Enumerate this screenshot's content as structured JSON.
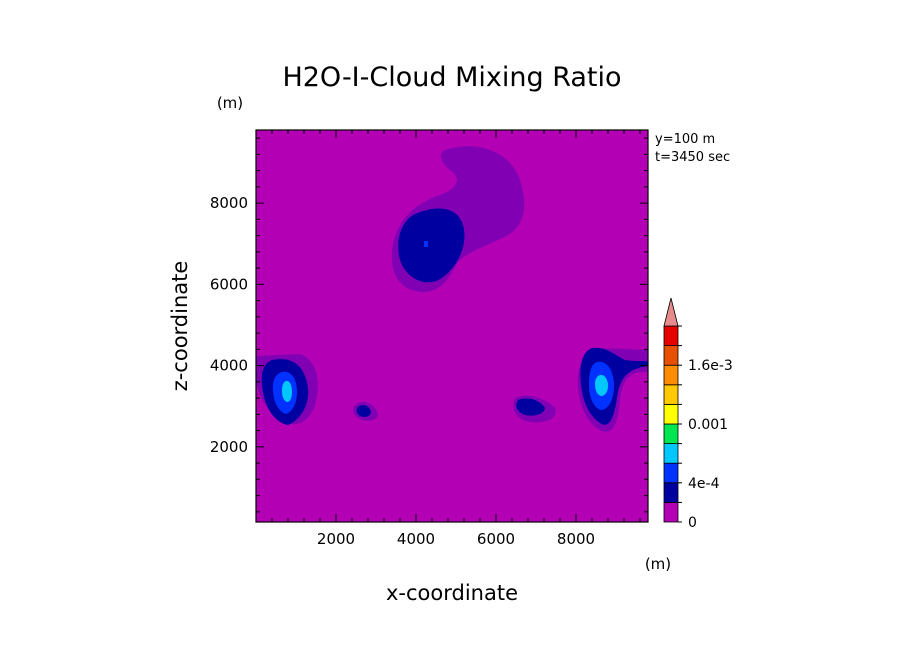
{
  "chart_data": {
    "type": "heatmap",
    "title": "H2O-I-Cloud Mixing Ratio",
    "xlabel": "x-coordinate",
    "ylabel": "z-coordinate",
    "x_unit": "(m)",
    "y_unit": "(m)",
    "xlim": [
      0,
      9800
    ],
    "ylim": [
      150,
      9800
    ],
    "x_ticks": [
      2000,
      4000,
      6000,
      8000
    ],
    "y_ticks": [
      2000,
      4000,
      6000,
      8000
    ],
    "x_tick_labels": [
      "2000",
      "4000",
      "6000",
      "8000"
    ],
    "y_tick_labels": [
      "2000",
      "4000",
      "6000",
      "8000"
    ],
    "annotations": [
      "y=100 m",
      "t=3450 sec"
    ],
    "colorbar": {
      "levels": [
        0,
        0.0002,
        0.0004,
        0.0006,
        0.0008,
        0.001,
        0.0012,
        0.0014,
        0.0016,
        0.0018,
        0.002
      ],
      "colors": [
        "#b400b4",
        "#0000a0",
        "#0032ff",
        "#00c8ff",
        "#00e650",
        "#ffff00",
        "#ffc800",
        "#ff8c00",
        "#e65000",
        "#e60000",
        "#e68c8c"
      ],
      "labels": [
        {
          "value": 0,
          "text": "0"
        },
        {
          "value": 0.0004,
          "text": "4e-4"
        },
        {
          "value": 0.001,
          "text": "0.001"
        },
        {
          "value": 0.0016,
          "text": "1.6e-3"
        }
      ],
      "extend": "max"
    },
    "features": [
      {
        "name": "upper-anvil",
        "x": 5200,
        "z": 8000,
        "level": 0.0001
      },
      {
        "name": "upper-core",
        "x": 4300,
        "z": 7000,
        "level": 0.0003
      },
      {
        "name": "left-cell",
        "x": 850,
        "z": 3500,
        "level": 0.0007
      },
      {
        "name": "right-cell",
        "x": 8700,
        "z": 3600,
        "level": 0.0007
      },
      {
        "name": "small-cell-a",
        "x": 2800,
        "z": 2850,
        "level": 0.0003
      },
      {
        "name": "small-cell-b",
        "x": 7000,
        "z": 2950,
        "level": 0.0003
      }
    ],
    "background_level": 0
  }
}
